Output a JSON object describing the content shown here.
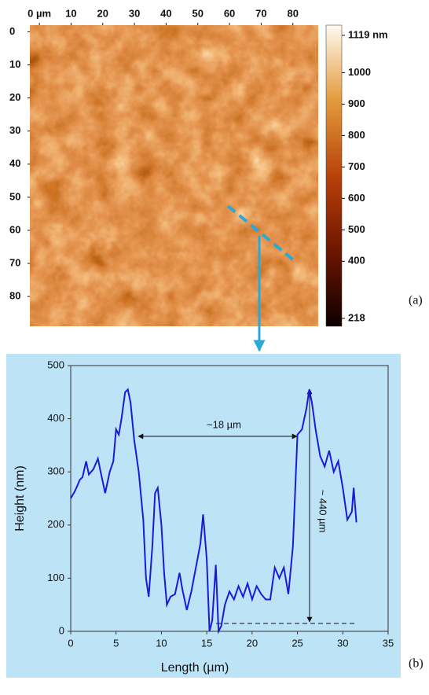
{
  "chart_data": [
    {
      "type": "image",
      "xlim": [
        -3,
        88
      ],
      "ylim": [
        -2,
        89
      ],
      "xticks": [
        {
          "value": 0,
          "label": "0 µm"
        },
        10,
        20,
        30,
        40,
        50,
        60,
        70,
        80
      ],
      "yticks": [
        0,
        10,
        20,
        30,
        40,
        50,
        60,
        70,
        80
      ],
      "colorbar": {
        "lim": [
          218,
          1119
        ],
        "ticks": [
          {
            "value": 1119,
            "label": "1119 nm"
          },
          1000,
          900,
          800,
          700,
          600,
          500,
          400,
          218
        ]
      },
      "label": "(a)"
    },
    {
      "type": "line",
      "xlabel": "Length (µm)",
      "ylabel": "Height (nm)",
      "xlim": [
        0,
        35
      ],
      "ylim": [
        0,
        500
      ],
      "xticks": [
        0,
        5,
        10,
        15,
        20,
        25,
        30,
        35
      ],
      "yticks": [
        0,
        100,
        200,
        300,
        400,
        500
      ],
      "x": [
        0,
        0.5,
        1,
        1.3,
        1.7,
        2,
        2.5,
        3,
        3.3,
        3.8,
        4.3,
        4.7,
        5,
        5.3,
        5.6,
        6,
        6.3,
        6.6,
        7,
        7.5,
        8,
        8.3,
        8.6,
        9,
        9.3,
        9.6,
        10,
        10.3,
        10.6,
        11,
        11.5,
        12,
        12.3,
        12.8,
        13.3,
        13.8,
        14.3,
        14.6,
        15,
        15.3,
        15.6,
        16,
        16.3,
        16.6,
        17,
        17.5,
        18,
        18.5,
        19,
        19.5,
        20,
        20.5,
        21,
        21.5,
        22,
        22.5,
        23,
        23.5,
        24,
        24.5,
        25,
        25.5,
        26,
        26.3,
        26.6,
        27,
        27.5,
        28,
        28.5,
        29,
        29.5,
        30,
        30.5,
        31,
        31.2,
        31.5
      ],
      "series": [
        {
          "color": "#1a1adb",
          "values": [
            250,
            265,
            285,
            290,
            320,
            295,
            305,
            325,
            300,
            260,
            300,
            320,
            380,
            370,
            400,
            450,
            455,
            430,
            360,
            300,
            210,
            100,
            65,
            160,
            260,
            270,
            200,
            110,
            50,
            65,
            70,
            110,
            80,
            40,
            75,
            120,
            165,
            220,
            135,
            0,
            20,
            125,
            0,
            10,
            50,
            75,
            60,
            85,
            65,
            90,
            60,
            85,
            70,
            60,
            60,
            120,
            100,
            120,
            70,
            160,
            370,
            380,
            420,
            455,
            430,
            380,
            330,
            310,
            340,
            300,
            320,
            270,
            210,
            225,
            270,
            205
          ]
        }
      ],
      "annotations": [
        "~18 µm",
        "~ 440 µm"
      ],
      "label": "(b)"
    }
  ]
}
